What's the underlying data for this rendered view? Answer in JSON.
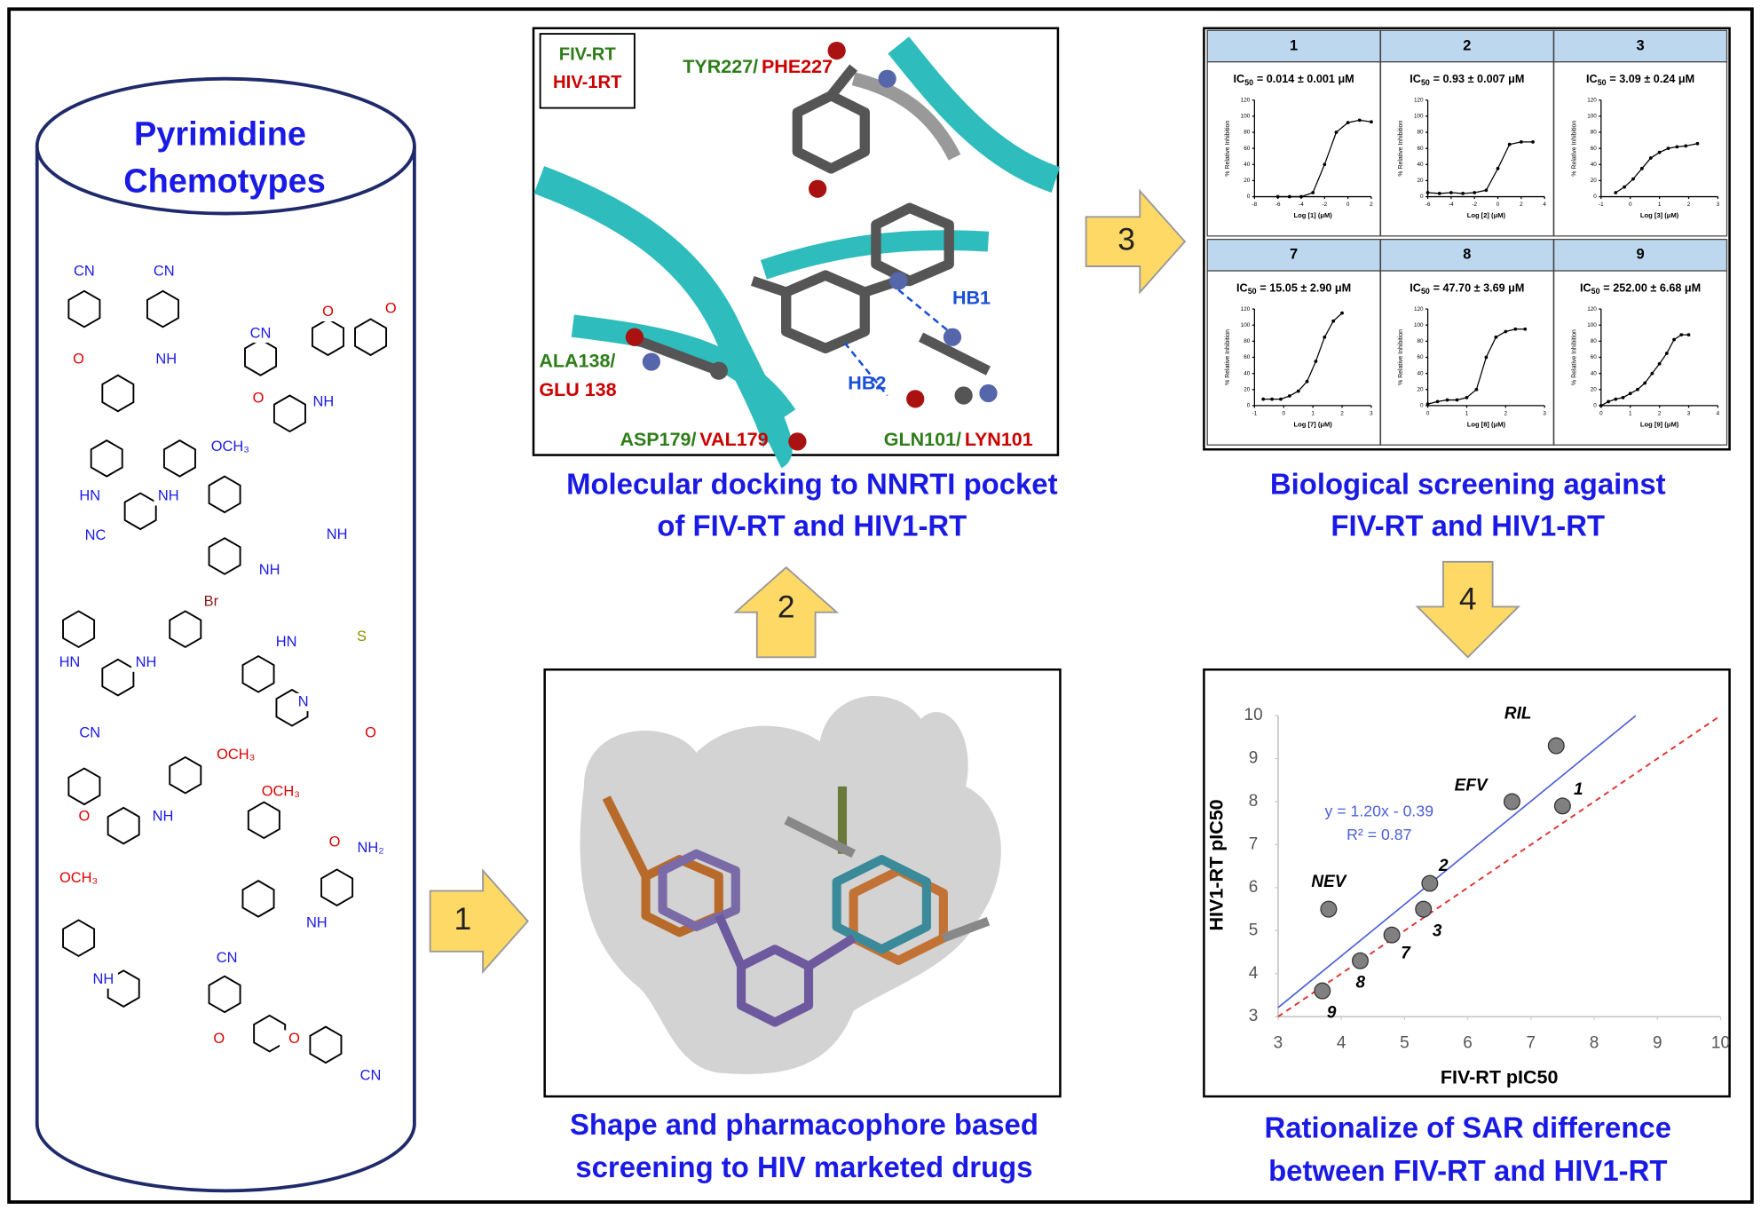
{
  "chemotypes": {
    "title": [
      "Pyrimidine",
      "Chemotypes"
    ],
    "labels": [
      "CN",
      "CN",
      "O",
      "NH",
      "CN",
      "O",
      "O",
      "O",
      "NH",
      "HN",
      "NH",
      "NC",
      "OCH₃",
      "NH",
      "NH",
      "Br",
      "HN",
      "NH",
      "HN",
      "S",
      "N",
      "O",
      "CN",
      "OCH₃",
      "O",
      "NH",
      "OCH₃",
      "NH₂",
      "O",
      "NH",
      "OCH₃",
      "NH",
      "CN",
      "O",
      "O",
      "CN"
    ]
  },
  "arrows": [
    "1",
    "2",
    "3",
    "4"
  ],
  "docking": {
    "legend": [
      "FIV-RT",
      "HIV-1RT"
    ],
    "residues": [
      [
        "TYR227/",
        "PHE227"
      ],
      [
        "ALA138/",
        "GLU 138"
      ],
      [
        "ASP179/",
        "VAL179"
      ],
      [
        "GLN101/",
        "LYN101"
      ]
    ],
    "hbonds": [
      "HB1",
      "HB2"
    ],
    "caption": [
      "Molecular docking to NNRTI pocket",
      "of FIV-RT and HIV1-RT"
    ]
  },
  "shape": {
    "caption": [
      "Shape and pharmacophore based",
      "screening to HIV marketed drugs"
    ]
  },
  "screening": {
    "caption": [
      "Biological screening against",
      "FIV-RT and HIV1-RT"
    ],
    "panels": [
      {
        "header": "1",
        "ic50": [
          "IC",
          "50",
          "= 0.014 ± 0.001 μM"
        ],
        "xlabel": "Log [1] (μM)",
        "ylabel": "% Relative Inhibition",
        "xlim": [
          -8,
          2
        ],
        "xticks": [
          -8,
          -6,
          -4,
          -2,
          0,
          2
        ],
        "ylim": [
          0,
          120
        ],
        "yticks": [
          0,
          20,
          40,
          60,
          80,
          100,
          120
        ],
        "x": [
          -6,
          -5,
          -4,
          -3,
          -2,
          -1,
          0,
          1,
          2
        ],
        "values": [
          0,
          0,
          0,
          5,
          40,
          80,
          92,
          95,
          93
        ]
      },
      {
        "header": "2",
        "ic50": [
          "IC",
          "50",
          "= 0.93 ± 0.007 μM"
        ],
        "xlabel": "Log [2] (μM)",
        "ylabel": "% Relative Inhibition",
        "xlim": [
          -6,
          4
        ],
        "xticks": [
          -6,
          -4,
          -2,
          0,
          2,
          4
        ],
        "ylim": [
          0,
          120
        ],
        "yticks": [
          0,
          20,
          40,
          60,
          80,
          100,
          120
        ],
        "x": [
          -6,
          -5,
          -4,
          -3,
          -2,
          -1,
          0,
          1,
          2,
          3
        ],
        "values": [
          5,
          4,
          5,
          4,
          5,
          8,
          35,
          65,
          68,
          68
        ]
      },
      {
        "header": "3",
        "ic50": [
          "IC",
          "50",
          "= 3.09 ± 0.24 μM"
        ],
        "xlabel": "Log [3] (μM)",
        "ylabel": "% Relative Inhibition",
        "xlim": [
          -1,
          3
        ],
        "xticks": [
          -1,
          0,
          1,
          2,
          3
        ],
        "ylim": [
          0,
          120
        ],
        "yticks": [
          0,
          20,
          40,
          60,
          80,
          100,
          120
        ],
        "x": [
          -0.5,
          -0.2,
          0.1,
          0.4,
          0.7,
          1,
          1.3,
          1.6,
          1.9,
          2.3
        ],
        "values": [
          5,
          12,
          22,
          35,
          48,
          55,
          60,
          62,
          63,
          66
        ]
      },
      {
        "header": "7",
        "ic50": [
          "IC",
          "50",
          "= 15.05 ± 2.90 μM"
        ],
        "xlabel": "Log [7] (μM)",
        "ylabel": "% Relative Inhibition",
        "xlim": [
          -1,
          3
        ],
        "xticks": [
          -1,
          0,
          1,
          2,
          3
        ],
        "ylim": [
          0,
          120
        ],
        "yticks": [
          0,
          20,
          40,
          60,
          80,
          100,
          120
        ],
        "x": [
          -0.7,
          -0.4,
          -0.1,
          0.2,
          0.5,
          0.8,
          1.1,
          1.4,
          1.7,
          2
        ],
        "values": [
          8,
          8,
          8,
          12,
          18,
          30,
          55,
          85,
          105,
          115
        ]
      },
      {
        "header": "8",
        "ic50": [
          "IC",
          "50",
          "= 47.70 ± 3.69 μM"
        ],
        "xlabel": "Log [8] (μM)",
        "ylabel": "% Relative Inhibition",
        "xlim": [
          0,
          3
        ],
        "xticks": [
          0,
          1,
          2,
          3
        ],
        "ylim": [
          0,
          120
        ],
        "yticks": [
          0,
          20,
          40,
          60,
          80,
          100,
          120
        ],
        "x": [
          0,
          0.25,
          0.5,
          0.75,
          1,
          1.25,
          1.5,
          1.75,
          2,
          2.25,
          2.5
        ],
        "values": [
          2,
          5,
          7,
          7,
          10,
          20,
          60,
          85,
          92,
          95,
          95
        ]
      },
      {
        "header": "9",
        "ic50": [
          "IC",
          "50",
          "= 252.00 ± 6.68 μM"
        ],
        "xlabel": "Log [9] (μM)",
        "ylabel": "% Relative Inhibition",
        "xlim": [
          0,
          4
        ],
        "xticks": [
          0,
          1,
          2,
          3,
          4
        ],
        "ylim": [
          0,
          120
        ],
        "yticks": [
          0,
          20,
          40,
          60,
          80,
          100,
          120
        ],
        "x": [
          0,
          0.25,
          0.5,
          0.75,
          1,
          1.25,
          1.5,
          1.75,
          2,
          2.25,
          2.5,
          2.75,
          3
        ],
        "values": [
          0,
          5,
          8,
          10,
          15,
          20,
          28,
          40,
          52,
          65,
          82,
          88,
          88
        ]
      }
    ]
  },
  "chart_data": {
    "type": "scatter",
    "xlabel": "FIV-RT pIC50",
    "ylabel": "HIV1-RT pIC50",
    "x": [
      7.4,
      6.7,
      7.5,
      5.4,
      5.3,
      4.8,
      4.3,
      3.7,
      3.8
    ],
    "values": [
      9.3,
      8.0,
      7.9,
      6.1,
      5.5,
      4.9,
      4.3,
      3.6,
      5.5
    ],
    "point_labels": [
      "RIL",
      "EFV",
      "1",
      "2",
      "3",
      "7",
      "8",
      "9",
      "NEV"
    ],
    "color": "#808080",
    "xlim": [
      3,
      10
    ],
    "ylim": [
      3,
      10
    ],
    "xticks": [
      3,
      4,
      5,
      6,
      7,
      8,
      9,
      10
    ],
    "yticks": [
      3,
      4,
      5,
      6,
      7,
      8,
      9,
      10
    ],
    "trend": {
      "equation": "y = 1.20x - 0.39",
      "r2": "R² = 0.87",
      "slope": 1.2,
      "intercept": -0.39,
      "color": "#4a5fd6"
    },
    "identity_color": "#e03030"
  },
  "rationale": {
    "caption": [
      "Rationalize of SAR difference",
      "between FIV-RT and HIV1-RT"
    ]
  }
}
